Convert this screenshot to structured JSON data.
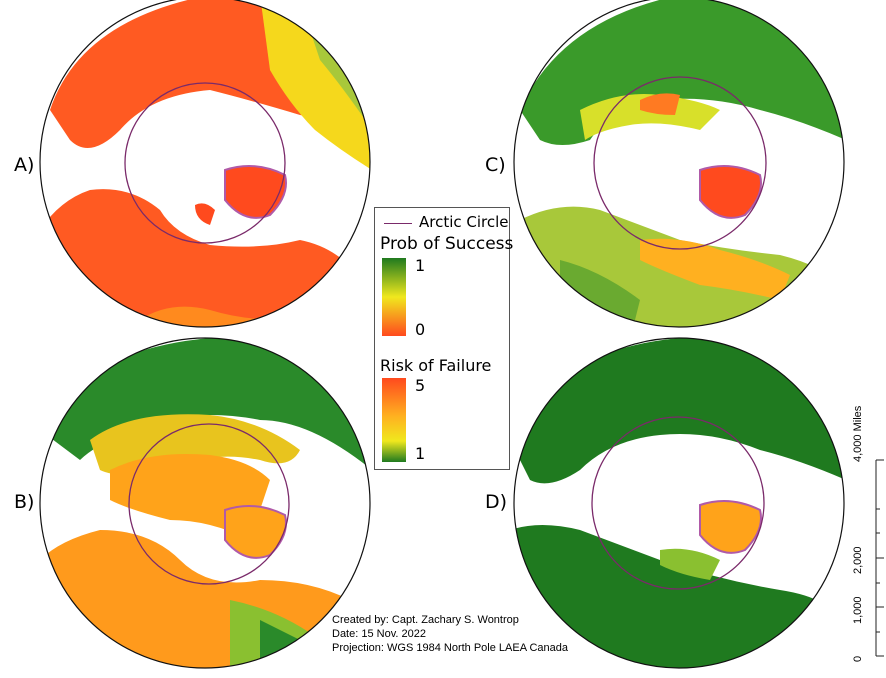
{
  "panels": [
    {
      "label": "A)",
      "theme": "prob_low"
    },
    {
      "label": "B)",
      "theme": "risk_mid"
    },
    {
      "label": "C)",
      "theme": "prob_mixed"
    },
    {
      "label": "D)",
      "theme": "risk_low"
    }
  ],
  "legend": {
    "arctic_circle": "Arctic Circle",
    "prob_title": "Prob of Success",
    "prob_max": "1",
    "prob_min": "0",
    "risk_title": "Risk of Failure",
    "risk_max": "5",
    "risk_min": "1"
  },
  "credits": {
    "line1": "Created by: Capt. Zachary S. Wontrop",
    "line2": "Date: 15 Nov. 2022",
    "line3": "Projection: WGS 1984 North Pole LAEA Canada"
  },
  "scale": {
    "unit_label": "4,000 Miles",
    "t2000": "2,000",
    "t1000": "1,000",
    "t0": "0"
  },
  "colors": {
    "arctic_circle": "#7a2a6a",
    "coast": "#b05aa8",
    "green": "#1f7a1f",
    "yellow": "#f0e81e",
    "orange": "#ffa31a",
    "red": "#ff4a1e"
  }
}
